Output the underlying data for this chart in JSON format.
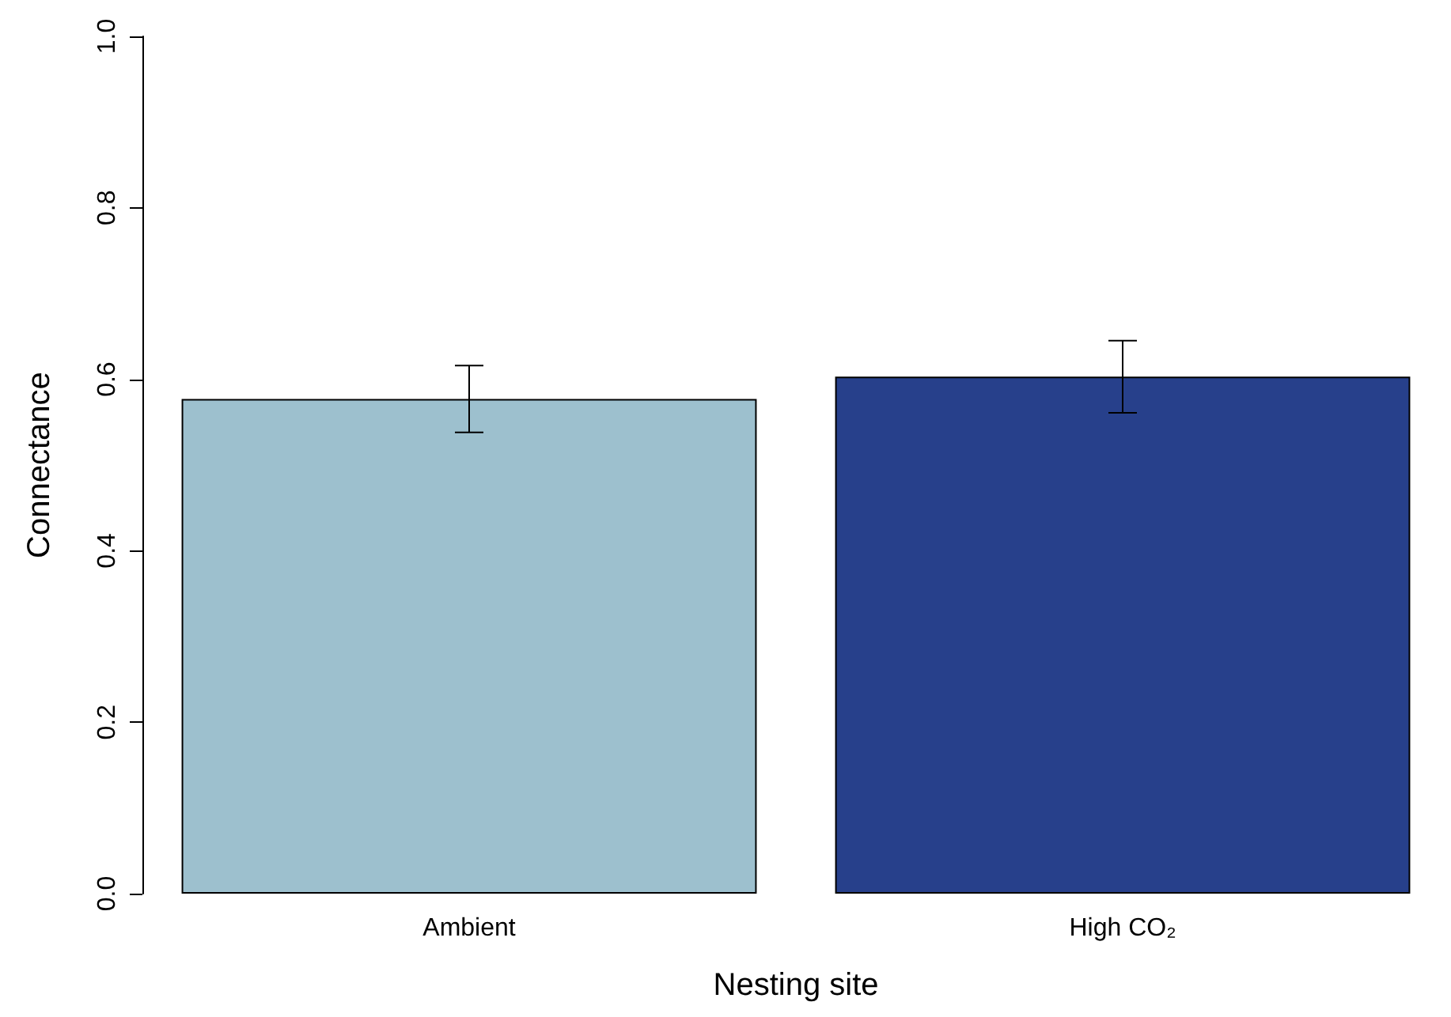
{
  "chart_data": {
    "type": "bar",
    "xlabel": "Nesting site",
    "ylabel": "Connectance",
    "categories": [
      "Ambient",
      "High CO₂"
    ],
    "values": [
      0.577,
      0.603
    ],
    "colors": [
      "#9dc0ce",
      "#27408b"
    ],
    "errors": [
      0.039,
      0.042
    ],
    "ylim": [
      0,
      1
    ],
    "yticks": [
      {
        "value": 0,
        "label": "0.0"
      },
      {
        "value": 0.2,
        "label": "0.2"
      },
      {
        "value": 0.4,
        "label": "0.4"
      },
      {
        "value": 0.6,
        "label": "0.6"
      },
      {
        "value": 0.8,
        "label": "0.8"
      },
      {
        "value": 1,
        "label": "1.0"
      }
    ]
  }
}
